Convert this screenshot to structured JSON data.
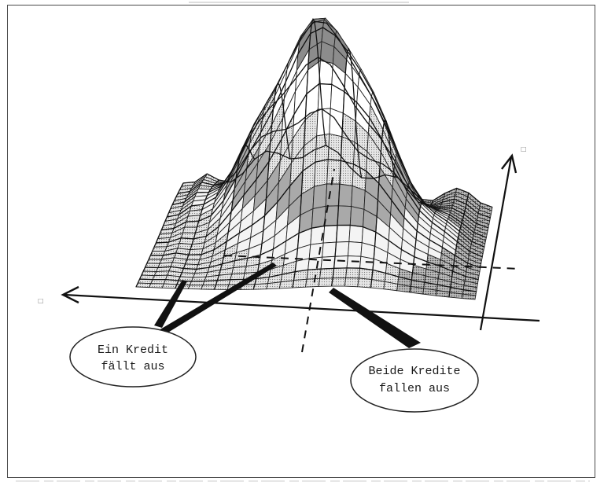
{
  "callouts": {
    "single_default": {
      "line1": "Ein Kredit",
      "line2": "fällt aus"
    },
    "joint_default": {
      "line1": "Beide Kredite",
      "line2": "fallen aus"
    }
  },
  "colors": {
    "ink": "#1a1a1a",
    "light_band": "#d8d8d8",
    "mid_band": "#a9a9a9",
    "peak_band": "#8c8c8c"
  }
}
